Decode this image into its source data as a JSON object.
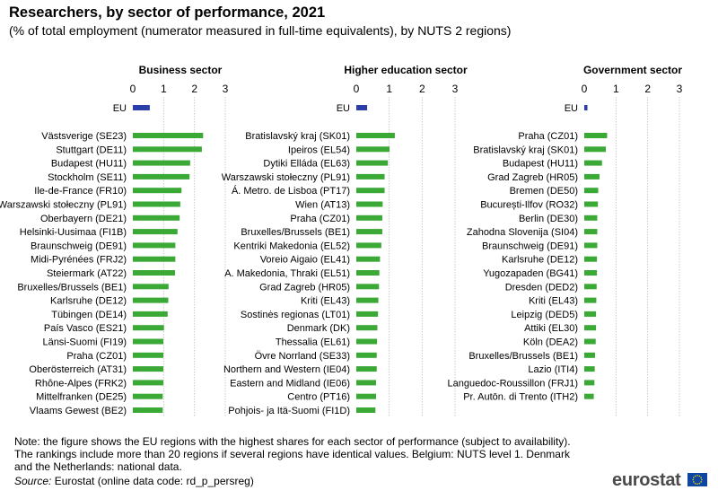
{
  "title": "Researchers, by sector of performance, 2021",
  "subtitle": "(% of total employment  (numerator measured in full-time equivalents), by NUTS 2 regions)",
  "footnote": "Note: the figure shows the EU regions with the highest shares for each sector of performance (subject to availability). The rankings include more than 20 regions if several regions have identical values. Belgium: NUTS level 1. Denmark and the Netherlands: national data.",
  "source": {
    "label": "Source:",
    "text": "Eurostat (online data code: rd_p_persreg)"
  },
  "logo": {
    "text": "eurostat"
  },
  "colors": {
    "eu": "#2c3ea8",
    "region": "#3aa935",
    "grid": "#bfbfbf",
    "flag": "#0e47a1",
    "stars": "#ffdd00"
  },
  "chart_data": [
    {
      "type": "bar",
      "orientation": "horizontal",
      "title": "Business sector",
      "xlim": [
        0,
        3
      ],
      "ticks": [
        "0",
        "1",
        "2",
        "3"
      ],
      "eu": {
        "label": "EU",
        "value": 0.55
      },
      "categories": [
        "Västsverige (SE23)",
        "Stuttgart (DE11)",
        "Budapest (HU11)",
        "Stockholm (SE11)",
        "Ile-de-France (FR10)",
        "Warszawski stołeczny (PL91)",
        "Oberbayern (DE21)",
        "Helsinki-Uusimaa (FI1B)",
        "Braunschweig (DE91)",
        "Midi-Pyrénées (FRJ2)",
        "Steiermark (AT22)",
        "Bruxelles/Brussels (BE1)",
        "Karlsruhe (DE12)",
        "Tübingen (DE14)",
        "País Vasco (ES21)",
        "Länsi-Suomi (FI19)",
        "Praha (CZ01)",
        "Oberösterreich (AT31)",
        "Rhône-Alpes (FRK2)",
        "Mittelfranken (DE25)",
        "Vlaams Gewest (BE2)"
      ],
      "values": [
        2.28,
        2.24,
        1.86,
        1.84,
        1.58,
        1.54,
        1.52,
        1.45,
        1.38,
        1.38,
        1.37,
        1.16,
        1.15,
        1.13,
        1.01,
        0.99,
        0.99,
        0.99,
        0.99,
        0.97,
        0.97
      ]
    },
    {
      "type": "bar",
      "orientation": "horizontal",
      "title": "Higher education sector",
      "xlim": [
        0,
        3
      ],
      "ticks": [
        "0",
        "1",
        "2",
        "3"
      ],
      "eu": {
        "label": "EU",
        "value": 0.33
      },
      "categories": [
        "Bratislavský kraj (SK01)",
        "Ipeiros (EL54)",
        "Dytiki Elláda (EL63)",
        "Warszawski stołeczny (PL91)",
        "Á. Metro. de Lisboa (PT17)",
        "Wien (AT13)",
        "Praha (CZ01)",
        "Bruxelles/Brussels (BE1)",
        "Kentriki Makedonia (EL52)",
        "Voreio Aigaio (EL41)",
        "A. Makedonia, Thraki (EL51)",
        "Grad Zagreb (HR05)",
        "Kriti (EL43)",
        "Sostinės regionas (LT01)",
        "Denmark (DK)",
        "Thessalia (EL61)",
        "Övre Norrland (SE33)",
        "Northern and Western (IE04)",
        "Eastern and Midland (IE06)",
        "Centro (PT16)",
        "Pohjois- ja Itä-Suomi (FI1D)"
      ],
      "values": [
        1.17,
        1.01,
        0.96,
        0.86,
        0.86,
        0.8,
        0.79,
        0.79,
        0.76,
        0.72,
        0.7,
        0.69,
        0.67,
        0.66,
        0.64,
        0.63,
        0.62,
        0.62,
        0.6,
        0.6,
        0.58
      ]
    },
    {
      "type": "bar",
      "orientation": "horizontal",
      "title": "Government sector",
      "xlim": [
        0,
        3
      ],
      "ticks": [
        "0",
        "1",
        "2",
        "3"
      ],
      "eu": {
        "label": "EU",
        "value": 0.1
      },
      "categories": [
        "Praha (CZ01)",
        "Bratislavský kraj (SK01)",
        "Budapest (HU11)",
        "Grad Zagreb (HR05)",
        "Bremen (DE50)",
        "București-Ilfov (RO32)",
        "Berlin (DE30)",
        "Zahodna Slovenija (SI04)",
        "Braunschweig (DE91)",
        "Karlsruhe (DE12)",
        "Yugozapaden (BG41)",
        "Dresden (DED2)",
        "Kriti (EL43)",
        "Leipzig (DED5)",
        "Attiki (EL30)",
        "Köln (DEA2)",
        "Bruxelles/Brussels (BE1)",
        "Lazio (ITI4)",
        "Languedoc-Roussillon (FRJ1)",
        "Pr. Autōn. di Trento (ITH2)"
      ],
      "values": [
        0.72,
        0.68,
        0.56,
        0.48,
        0.44,
        0.43,
        0.41,
        0.41,
        0.41,
        0.4,
        0.4,
        0.39,
        0.38,
        0.37,
        0.37,
        0.36,
        0.34,
        0.33,
        0.32,
        0.3
      ]
    }
  ]
}
